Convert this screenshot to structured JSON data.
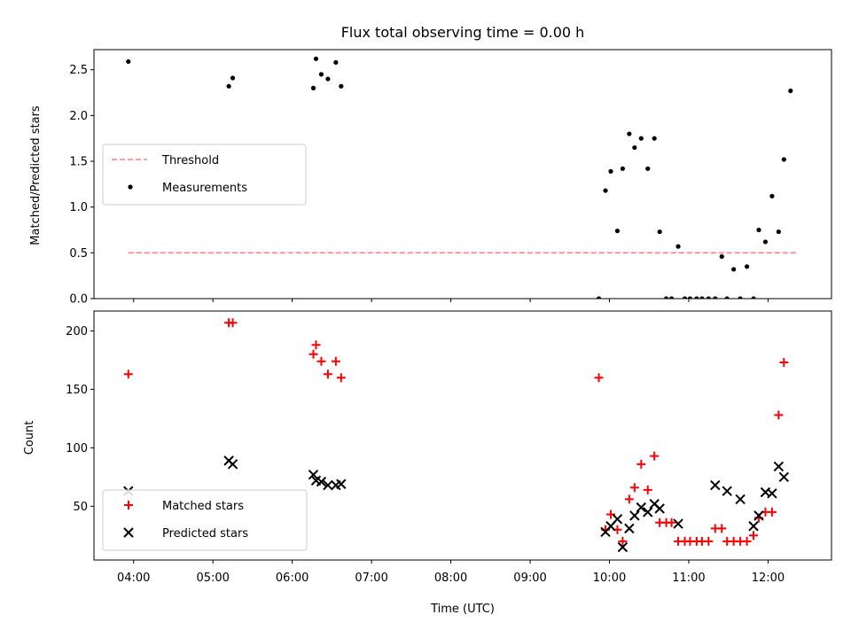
{
  "chart_data": [
    {
      "type": "scatter",
      "title": "Flux total observing time = 0.00 h",
      "xlabel": "",
      "ylabel": "Matched/Predicted stars",
      "ylim": [
        0,
        2.72
      ],
      "yticks": [
        0.0,
        0.5,
        1.0,
        1.5,
        2.0,
        2.5
      ],
      "ytick_labels": [
        "0.0",
        "0.5",
        "1.0",
        "1.5",
        "2.0",
        "2.5"
      ],
      "xlim": [
        "03:30",
        "12:48"
      ],
      "legend_position": "center-left",
      "series": [
        {
          "name": "Threshold",
          "kind": "dashed-line",
          "color": "#ff8080",
          "points": [
            [
              "03:56",
              0.5
            ],
            [
              "12:22",
              0.5
            ]
          ]
        },
        {
          "name": "Measurements",
          "kind": "dots",
          "color": "#000000",
          "points": [
            [
              "03:56",
              2.59
            ],
            [
              "05:12",
              2.32
            ],
            [
              "05:15",
              2.41
            ],
            [
              "06:16",
              2.3
            ],
            [
              "06:18",
              2.62
            ],
            [
              "06:22",
              2.45
            ],
            [
              "06:27",
              2.4
            ],
            [
              "06:33",
              2.58
            ],
            [
              "06:37",
              2.32
            ],
            [
              "09:52",
              0.0
            ],
            [
              "09:57",
              1.18
            ],
            [
              "10:01",
              1.39
            ],
            [
              "10:06",
              0.74
            ],
            [
              "10:10",
              1.42
            ],
            [
              "10:15",
              1.8
            ],
            [
              "10:19",
              1.65
            ],
            [
              "10:24",
              1.75
            ],
            [
              "10:29",
              1.42
            ],
            [
              "10:34",
              1.75
            ],
            [
              "10:38",
              0.73
            ],
            [
              "10:43",
              0.0
            ],
            [
              "10:47",
              0.0
            ],
            [
              "10:52",
              0.57
            ],
            [
              "10:57",
              0.0
            ],
            [
              "11:01",
              0.0
            ],
            [
              "11:06",
              0.0
            ],
            [
              "11:10",
              0.0
            ],
            [
              "11:15",
              0.0
            ],
            [
              "11:20",
              0.0
            ],
            [
              "11:25",
              0.46
            ],
            [
              "11:29",
              0.0
            ],
            [
              "11:34",
              0.32
            ],
            [
              "11:39",
              0.0
            ],
            [
              "11:44",
              0.35
            ],
            [
              "11:49",
              0.0
            ],
            [
              "11:53",
              0.75
            ],
            [
              "11:58",
              0.62
            ],
            [
              "12:03",
              1.12
            ],
            [
              "12:08",
              0.73
            ],
            [
              "12:12",
              1.52
            ],
            [
              "12:17",
              2.27
            ]
          ]
        }
      ]
    },
    {
      "type": "scatter",
      "title": "",
      "xlabel": "Time (UTC)",
      "ylabel": "Count",
      "ylim": [
        4,
        217
      ],
      "yticks": [
        50,
        100,
        150,
        200
      ],
      "ytick_labels": [
        "50",
        "100",
        "150",
        "200"
      ],
      "xlim": [
        "03:30",
        "12:48"
      ],
      "xticks": [
        "04:00",
        "05:00",
        "06:00",
        "07:00",
        "08:00",
        "09:00",
        "10:00",
        "11:00",
        "12:00"
      ],
      "xtick_labels": [
        "04:00",
        "05:00",
        "06:00",
        "07:00",
        "08:00",
        "09:00",
        "10:00",
        "11:00",
        "12:00"
      ],
      "legend_position": "lower-left",
      "series": [
        {
          "name": "Matched stars",
          "marker": "plus",
          "color": "#ff0000",
          "points": [
            [
              "03:56",
              163
            ],
            [
              "05:12",
              207
            ],
            [
              "05:15",
              207
            ],
            [
              "06:16",
              180
            ],
            [
              "06:18",
              188
            ],
            [
              "06:22",
              174
            ],
            [
              "06:27",
              163
            ],
            [
              "06:33",
              174
            ],
            [
              "06:37",
              160
            ],
            [
              "09:52",
              160
            ],
            [
              "09:57",
              30
            ],
            [
              "10:01",
              43
            ],
            [
              "10:06",
              30
            ],
            [
              "10:10",
              20
            ],
            [
              "10:15",
              56
            ],
            [
              "10:19",
              66
            ],
            [
              "10:24",
              86
            ],
            [
              "10:29",
              64
            ],
            [
              "10:34",
              93
            ],
            [
              "10:38",
              36
            ],
            [
              "10:43",
              36
            ],
            [
              "10:47",
              36
            ],
            [
              "10:52",
              20
            ],
            [
              "10:57",
              20
            ],
            [
              "11:01",
              20
            ],
            [
              "11:06",
              20
            ],
            [
              "11:10",
              20
            ],
            [
              "11:15",
              20
            ],
            [
              "11:20",
              31
            ],
            [
              "11:25",
              31
            ],
            [
              "11:29",
              20
            ],
            [
              "11:34",
              20
            ],
            [
              "11:39",
              20
            ],
            [
              "11:44",
              20
            ],
            [
              "11:49",
              25
            ],
            [
              "11:53",
              40
            ],
            [
              "11:58",
              45
            ],
            [
              "12:03",
              45
            ],
            [
              "12:08",
              128
            ],
            [
              "12:12",
              173
            ]
          ]
        },
        {
          "name": "Predicted stars",
          "marker": "x",
          "color": "#000000",
          "points": [
            [
              "03:56",
              63
            ],
            [
              "05:12",
              89
            ],
            [
              "05:15",
              86
            ],
            [
              "06:16",
              77
            ],
            [
              "06:18",
              72
            ],
            [
              "06:22",
              71
            ],
            [
              "06:27",
              68
            ],
            [
              "06:33",
              68
            ],
            [
              "06:37",
              69
            ],
            [
              "09:57",
              28
            ],
            [
              "10:01",
              33
            ],
            [
              "10:06",
              39
            ],
            [
              "10:10",
              15
            ],
            [
              "10:15",
              31
            ],
            [
              "10:19",
              42
            ],
            [
              "10:24",
              49
            ],
            [
              "10:29",
              45
            ],
            [
              "10:34",
              52
            ],
            [
              "10:38",
              48
            ],
            [
              "10:52",
              35
            ],
            [
              "11:20",
              68
            ],
            [
              "11:29",
              63
            ],
            [
              "11:39",
              56
            ],
            [
              "11:49",
              33
            ],
            [
              "11:53",
              42
            ],
            [
              "11:58",
              62
            ],
            [
              "12:03",
              61
            ],
            [
              "12:08",
              84
            ],
            [
              "12:12",
              75
            ]
          ]
        }
      ]
    }
  ]
}
